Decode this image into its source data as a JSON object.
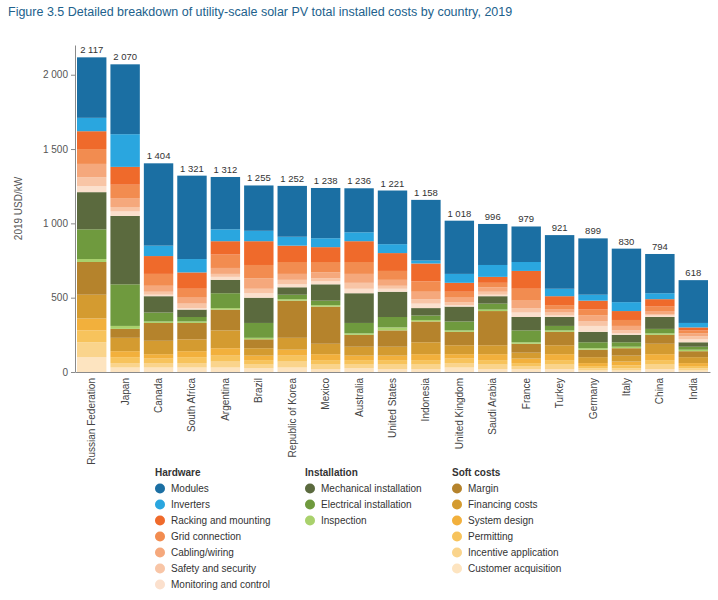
{
  "chart_data": {
    "type": "bar",
    "title": "Figure 3.5 Detailed breakdown of utility-scale solar PV total installed costs by country, 2019",
    "y_label": "2019 USD/kW",
    "stacked": true,
    "grid": false,
    "categories": [
      "Russian Federation",
      "Japan",
      "Canada",
      "South Africa",
      "Argentina",
      "Brazil",
      "Republic of Korea",
      "Mexico",
      "Australia",
      "United States",
      "Indonesia",
      "United Kingdom",
      "Saudi Arabia",
      "France",
      "Turkey",
      "Germany",
      "Italy",
      "China",
      "India"
    ],
    "totals": [
      2117,
      2070,
      1404,
      1321,
      1312,
      1255,
      1252,
      1238,
      1236,
      1221,
      1158,
      1018,
      996,
      979,
      921,
      899,
      830,
      794,
      618
    ],
    "total_labels": [
      "2 117",
      "2 070",
      "1 404",
      "1 321",
      "1 312",
      "1 255",
      "1 252",
      "1 238",
      "1 236",
      "1 221",
      "1 158",
      "1 018",
      "996",
      "979",
      "921",
      "899",
      "830",
      "794",
      "618"
    ],
    "ylim": [
      0,
      2200
    ],
    "yticks": [
      0,
      500,
      {
        "value": 1000,
        "label": "1 000"
      },
      {
        "value": 1500,
        "label": "1 500"
      },
      {
        "value": 2000,
        "label": "2 000"
      }
    ],
    "series": [
      {
        "name": "Modules",
        "group": "Hardware",
        "color": "#1b6fa3",
        "values": [
          407,
          470,
          554,
          561,
          352,
          305,
          342,
          338,
          296,
          361,
          408,
          358,
          276,
          239,
          361,
          379,
          360,
          264,
          288
        ]
      },
      {
        "name": "Inverters",
        "group": "Hardware",
        "color": "#2aa6df",
        "values": [
          90,
          220,
          70,
          90,
          80,
          70,
          60,
          60,
          60,
          60,
          20,
          60,
          80,
          60,
          50,
          40,
          60,
          40,
          30
        ]
      },
      {
        "name": "Racking and mounting",
        "group": "Hardware",
        "color": "#ef6a2b",
        "values": [
          120,
          120,
          120,
          110,
          90,
          160,
          110,
          100,
          140,
          120,
          120,
          60,
          40,
          120,
          60,
          60,
          60,
          50,
          20
        ]
      },
      {
        "name": "Grid connection",
        "group": "Hardware",
        "color": "#f28c50",
        "values": [
          100,
          90,
          80,
          60,
          90,
          90,
          80,
          70,
          80,
          60,
          70,
          40,
          30,
          80,
          30,
          40,
          40,
          30,
          20
        ]
      },
      {
        "name": "Cabling/wiring",
        "group": "Hardware",
        "color": "#f5a87c",
        "values": [
          90,
          60,
          40,
          40,
          40,
          70,
          40,
          40,
          60,
          40,
          50,
          30,
          30,
          50,
          20,
          40,
          30,
          20,
          20
        ]
      },
      {
        "name": "Safety and security",
        "group": "Hardware",
        "color": "#f8c5a6",
        "values": [
          60,
          30,
          20,
          30,
          20,
          30,
          30,
          20,
          40,
          20,
          30,
          20,
          20,
          30,
          20,
          30,
          20,
          10,
          20
        ]
      },
      {
        "name": "Monitoring and control",
        "group": "Hardware",
        "color": "#fbe0cd",
        "values": [
          40,
          30,
          10,
          10,
          20,
          30,
          20,
          20,
          30,
          20,
          30,
          10,
          10,
          30,
          10,
          40,
          10,
          10,
          20
        ]
      },
      {
        "name": "Mechanical installation",
        "group": "Installation",
        "color": "#5b6a3e",
        "values": [
          250,
          460,
          110,
          50,
          90,
          170,
          50,
          110,
          200,
          170,
          50,
          100,
          50,
          90,
          60,
          70,
          50,
          80,
          30
        ]
      },
      {
        "name": "Electrical installation",
        "group": "Installation",
        "color": "#6f9a3e",
        "values": [
          200,
          280,
          60,
          30,
          100,
          100,
          30,
          30,
          70,
          70,
          30,
          60,
          40,
          80,
          30,
          40,
          30,
          30,
          20
        ]
      },
      {
        "name": "Inspection",
        "group": "Installation",
        "color": "#a9d16c",
        "values": [
          20,
          20,
          10,
          10,
          10,
          10,
          10,
          10,
          10,
          20,
          10,
          10,
          10,
          10,
          10,
          10,
          10,
          10,
          10
        ]
      },
      {
        "name": "Margin",
        "group": "Soft costs",
        "color": "#b5832c",
        "values": [
          220,
          60,
          120,
          110,
          140,
          60,
          250,
          250,
          80,
          110,
          140,
          90,
          230,
          60,
          90,
          50,
          50,
          60,
          40
        ]
      },
      {
        "name": "Financing costs",
        "group": "Soft costs",
        "color": "#d49b30",
        "values": [
          160,
          90,
          90,
          80,
          120,
          50,
          80,
          70,
          60,
          60,
          80,
          60,
          60,
          40,
          60,
          40,
          40,
          70,
          40
        ]
      },
      {
        "name": "System design",
        "group": "Soft costs",
        "color": "#f2b03c",
        "values": [
          80,
          40,
          30,
          40,
          50,
          30,
          40,
          40,
          30,
          30,
          40,
          30,
          40,
          30,
          40,
          20,
          25,
          40,
          20
        ]
      },
      {
        "name": "Permitting",
        "group": "Soft costs",
        "color": "#f7c35c",
        "values": [
          80,
          40,
          30,
          40,
          40,
          30,
          40,
          30,
          30,
          30,
          30,
          30,
          30,
          20,
          30,
          15,
          20,
          30,
          15
        ]
      },
      {
        "name": "Incentive application",
        "group": "Soft costs",
        "color": "#fad48c",
        "values": [
          100,
          30,
          30,
          30,
          40,
          25,
          40,
          30,
          25,
          30,
          30,
          30,
          30,
          20,
          30,
          15,
          15,
          30,
          15
        ]
      },
      {
        "name": "Customer acquisition",
        "group": "Soft costs",
        "color": "#fde4c0",
        "values": [
          100,
          30,
          30,
          30,
          30,
          25,
          30,
          20,
          25,
          20,
          20,
          30,
          20,
          20,
          20,
          10,
          10,
          20,
          10
        ]
      }
    ]
  }
}
